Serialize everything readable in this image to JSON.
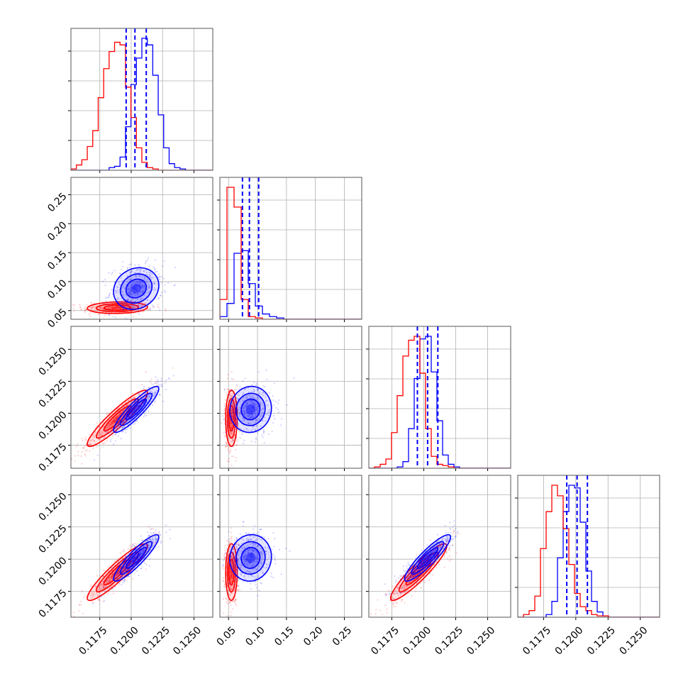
{
  "colors": {
    "series_a": "#0000ff",
    "series_b": "#ff0000",
    "grid": "#b0b0b0",
    "frame": "#555555"
  },
  "chart_data": {
    "type": "corner",
    "grid": true,
    "variables": [
      {
        "range": [
          0.1152,
          0.1265
        ],
        "ticks": [
          0.1175,
          0.12,
          0.1225,
          0.125
        ],
        "tick_labels": [
          "0.1175",
          "0.1200",
          "0.1225",
          "0.1250"
        ]
      },
      {
        "range": [
          0.035,
          0.28
        ],
        "ticks": [
          0.05,
          0.1,
          0.15,
          0.2,
          0.25
        ],
        "tick_labels": [
          "0.05",
          "0.10",
          "0.15",
          "0.20",
          "0.25"
        ]
      },
      {
        "range": [
          0.1157,
          0.1268
        ],
        "ticks": [
          0.1175,
          0.12,
          0.1225,
          0.125
        ],
        "tick_labels": [
          "0.1175",
          "0.1200",
          "0.1225",
          "0.1250"
        ]
      },
      {
        "range": [
          0.1155,
          0.1265
        ],
        "ticks": [
          0.1175,
          0.12,
          0.1225,
          0.125
        ],
        "tick_labels": [
          "0.1175",
          "0.1200",
          "0.1225",
          "0.1250"
        ]
      }
    ],
    "series": [
      {
        "color": "#0000ff",
        "quantiles": [
          [
            0.1196,
            0.1203,
            0.1212
          ],
          [
            0.074,
            0.086,
            0.102
          ],
          [
            0.1195,
            0.1203,
            0.1211
          ],
          [
            0.1193,
            0.1201,
            0.1209
          ]
        ],
        "means": [
          0.1204,
          0.088,
          0.1203,
          0.1201
        ],
        "sigmas": [
          0.0009,
          0.018,
          0.0009,
          0.0009
        ],
        "correlations": [
          [
            0,
            1,
            0.15
          ],
          [
            0,
            2,
            0.9
          ],
          [
            0,
            3,
            0.9
          ],
          [
            1,
            2,
            0.05
          ],
          [
            1,
            3,
            0.05
          ],
          [
            2,
            3,
            0.9
          ]
        ],
        "hist": [
          {
            "edges": [
              0.1152,
              0.1265
            ],
            "counts": [
              0,
              0,
              0,
              0,
              0,
              0,
              0,
              0.02,
              0.03,
              0.1,
              0.33,
              0.65,
              0.85,
              1.0,
              0.95,
              0.72,
              0.42,
              0.17,
              0.05,
              0.02,
              0.01,
              0,
              0,
              0,
              0,
              0
            ]
          },
          {
            "edges": [
              0.035,
              0.28
            ],
            "counts": [
              0.02,
              0.12,
              0.5,
              0.52,
              0.27,
              0.1,
              0.04,
              0.02,
              0.01,
              0,
              0,
              0,
              0,
              0,
              0,
              0,
              0,
              0,
              0,
              0
            ]
          },
          {
            "edges": [
              0.1157,
              0.1268
            ],
            "counts": [
              0,
              0,
              0,
              0,
              0,
              0.01,
              0.05,
              0.3,
              0.68,
              0.98,
              1.0,
              0.73,
              0.36,
              0.1,
              0.03,
              0.01,
              0,
              0,
              0,
              0,
              0,
              0,
              0,
              0,
              0
            ]
          },
          {
            "edges": [
              0.1155,
              0.1265
            ],
            "counts": [
              0,
              0,
              0,
              0,
              0,
              0.02,
              0.12,
              0.45,
              0.8,
              1.0,
              0.98,
              0.72,
              0.35,
              0.12,
              0.04,
              0.01,
              0,
              0,
              0,
              0,
              0,
              0,
              0,
              0,
              0
            ]
          }
        ]
      },
      {
        "color": "#ff0000",
        "quantiles": [],
        "means": [
          0.1189,
          0.055,
          0.1196,
          0.119
        ],
        "sigmas": [
          0.0012,
          0.005,
          0.0011,
          0.0011
        ],
        "correlations": [
          [
            0,
            1,
            0.1
          ],
          [
            0,
            2,
            0.92
          ],
          [
            0,
            3,
            0.92
          ],
          [
            1,
            2,
            0.02
          ],
          [
            1,
            3,
            0.02
          ],
          [
            2,
            3,
            0.92
          ]
        ],
        "hist": [
          {
            "edges": [
              0.1152,
              0.1265
            ],
            "counts": [
              0.01,
              0.04,
              0.08,
              0.18,
              0.3,
              0.55,
              0.77,
              0.9,
              0.97,
              0.95,
              0.63,
              0.4,
              0.17,
              0.06,
              0.02,
              0.01,
              0,
              0,
              0,
              0,
              0,
              0,
              0,
              0,
              0,
              0
            ]
          },
          {
            "edges": [
              0.035,
              0.28
            ],
            "counts": [
              0.15,
              1.0,
              0.85,
              0.15,
              0.02,
              0.01,
              0,
              0,
              0,
              0,
              0,
              0,
              0,
              0,
              0,
              0,
              0,
              0,
              0,
              0
            ]
          },
          {
            "edges": [
              0.1157,
              0.1268
            ],
            "counts": [
              0,
              0.01,
              0.03,
              0.07,
              0.27,
              0.55,
              0.85,
              0.97,
              1.0,
              0.72,
              0.3,
              0.09,
              0.03,
              0.02,
              0.01,
              0,
              0,
              0,
              0,
              0,
              0,
              0,
              0,
              0,
              0
            ]
          },
          {
            "edges": [
              0.1155,
              0.1265
            ],
            "counts": [
              0,
              0.02,
              0.05,
              0.16,
              0.52,
              0.8,
              1.0,
              0.92,
              0.67,
              0.4,
              0.18,
              0.08,
              0.05,
              0.02,
              0.01,
              0.01,
              0,
              0,
              0,
              0,
              0,
              0,
              0,
              0,
              0
            ]
          }
        ]
      }
    ]
  }
}
